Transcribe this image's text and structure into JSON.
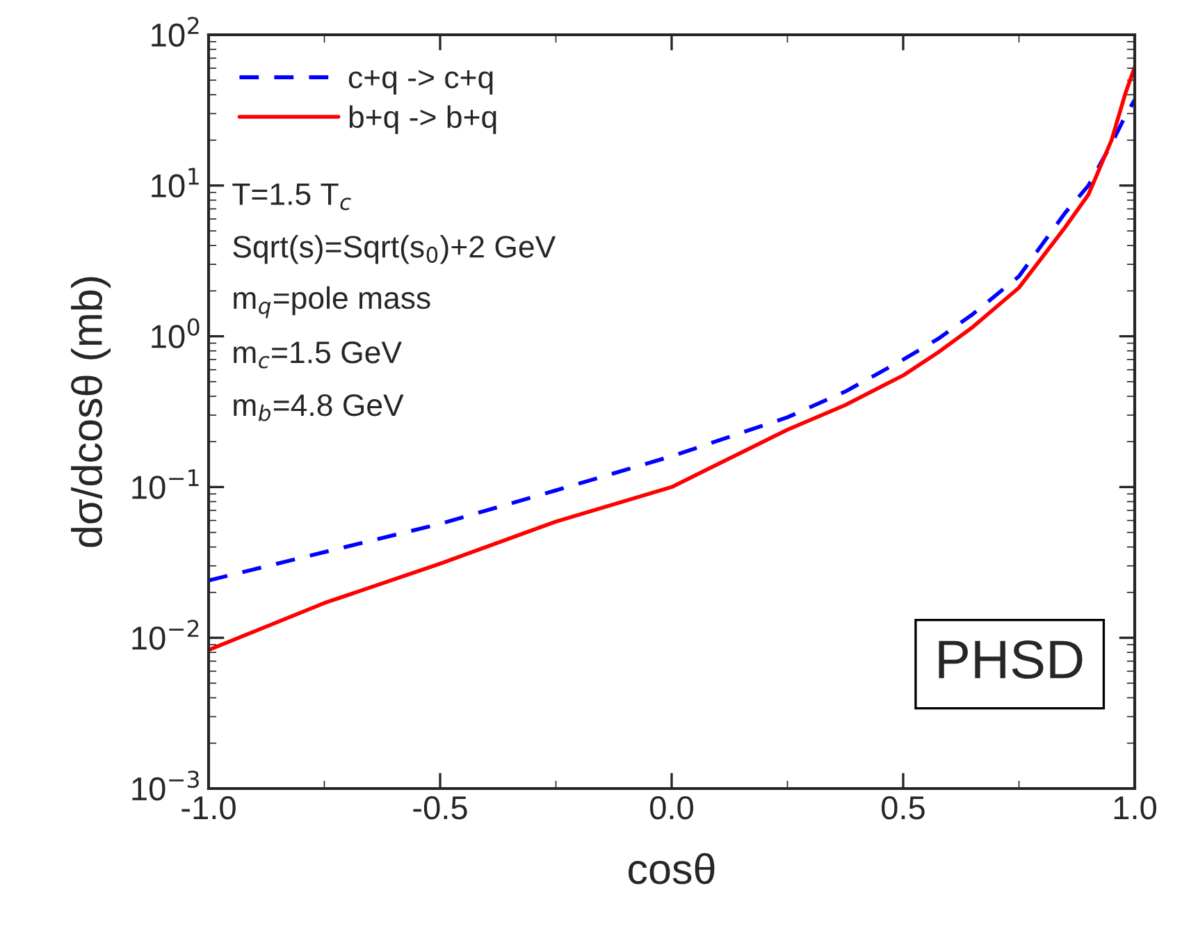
{
  "chart_data": {
    "type": "line",
    "xlabel": "cosθ",
    "ylabel": "dσ/dcosθ (mb)",
    "log": "y",
    "xlim": [
      -1.0,
      1.0
    ],
    "xticks": [
      {
        "value": -1.0,
        "label": "-1.0"
      },
      {
        "value": -0.5,
        "label": "-0.5"
      },
      {
        "value": 0.0,
        "label": "0.0"
      },
      {
        "value": 0.5,
        "label": "0.5"
      },
      {
        "value": 1.0,
        "label": "1.0"
      }
    ],
    "ylim": [
      0.001,
      100
    ],
    "yticks": [
      {
        "value": 0.001,
        "label": "10$^{−3}$"
      },
      {
        "value": 0.01,
        "label": "10$^{−2}$"
      },
      {
        "value": 0.1,
        "label": "10$^{−1}$"
      },
      {
        "value": 1,
        "label": "10$^{0}$"
      },
      {
        "value": 10,
        "label": "10$^{1}$"
      },
      {
        "value": 100,
        "label": "10$^{2}$"
      }
    ],
    "grid": false,
    "legend": "top left",
    "series": [
      {
        "name": "c+q -> c+q",
        "color": "#0000ff",
        "line_style": "dashed",
        "x": [
          -1.0,
          -0.75,
          -0.5,
          -0.25,
          0.0,
          0.25,
          0.375,
          0.5,
          0.575,
          0.65,
          0.75,
          0.85,
          0.9,
          0.95,
          0.98,
          1.0
        ],
        "values": [
          0.024,
          0.037,
          0.057,
          0.095,
          0.16,
          0.29,
          0.43,
          0.7,
          0.96,
          1.4,
          2.5,
          6.6,
          10,
          19,
          29,
          37
        ]
      },
      {
        "name": "b+q -> b+q",
        "color": "#ff0000",
        "line_style": "solid",
        "x": [
          -1.0,
          -0.75,
          -0.5,
          -0.25,
          0.0,
          0.25,
          0.375,
          0.5,
          0.575,
          0.65,
          0.75,
          0.85,
          0.9,
          0.95,
          0.98,
          1.0
        ],
        "values": [
          0.0083,
          0.017,
          0.031,
          0.059,
          0.1,
          0.24,
          0.35,
          0.55,
          0.78,
          1.15,
          2.1,
          5.3,
          8.7,
          20,
          41,
          61
        ]
      }
    ],
    "annotations": [
      "T=1.5 T$_{c}$",
      "Sqrt(s)=Sqrt(s$_{0}$)+2 GeV",
      "m$_{q}$=pole mass",
      "m$_{c}$=1.5 GeV",
      "m$_{b}$=4.8 GeV",
      "PHSD"
    ]
  }
}
